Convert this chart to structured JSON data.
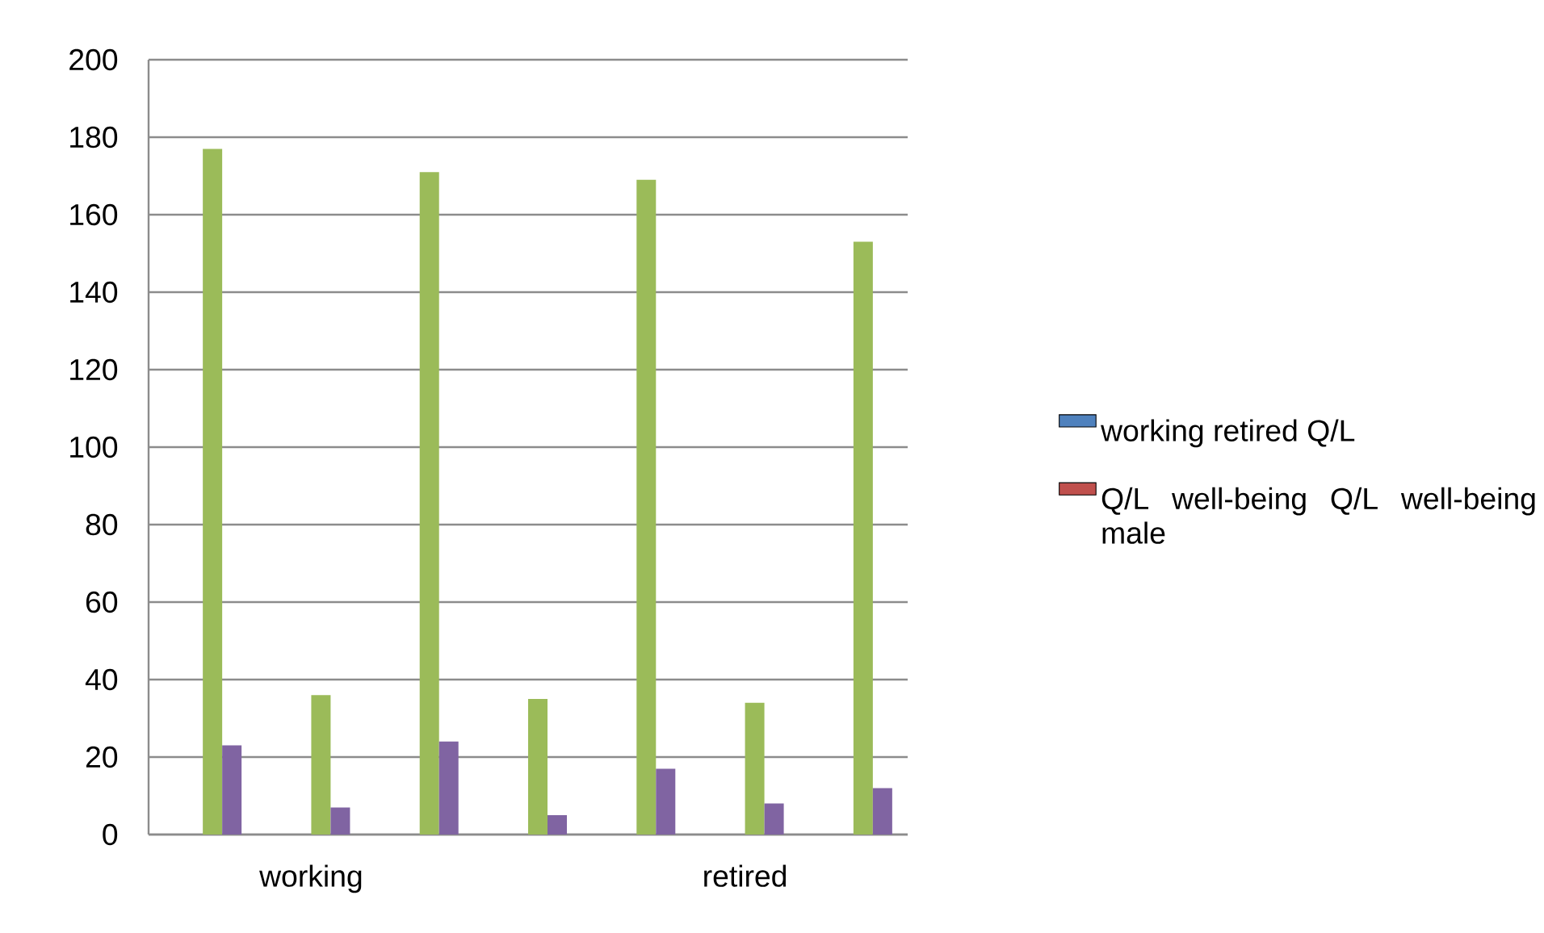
{
  "chart_data": {
    "type": "bar",
    "categories": [
      null,
      "working",
      null,
      null,
      null,
      "retired",
      null
    ],
    "series": [
      {
        "name": "working  retired Q/L",
        "color": "#4f81bd",
        "values": [
          null,
          null,
          null,
          null,
          null,
          null,
          null
        ]
      },
      {
        "name": "Q/L well-being Q/L well-being male",
        "color": "#c0504d",
        "values": [
          null,
          null,
          null,
          null,
          null,
          null,
          null
        ]
      },
      {
        "color": "#9bbb59",
        "values": [
          177,
          36,
          171,
          35,
          169,
          34,
          153
        ]
      },
      {
        "color": "#8064a2",
        "values": [
          23,
          7,
          24,
          5,
          17,
          8,
          12
        ]
      }
    ],
    "ylim": [
      0,
      200
    ],
    "yticks": [
      0,
      20,
      40,
      60,
      80,
      100,
      120,
      140,
      160,
      180,
      200
    ],
    "grid": "y",
    "legend": "right"
  }
}
